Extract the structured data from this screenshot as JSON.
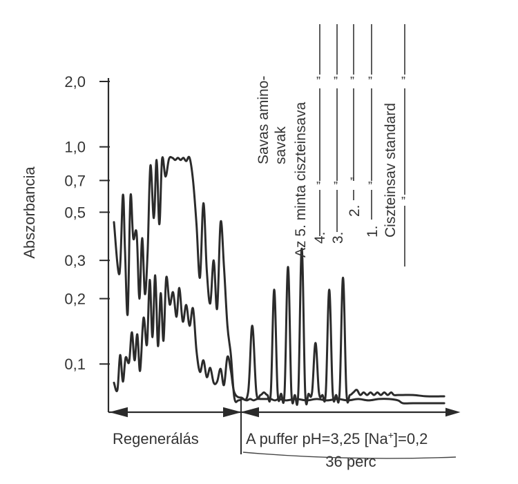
{
  "chart_data": {
    "type": "line",
    "ylabel": "Abszorbancia",
    "yscale": "log",
    "ylim": [
      0.06,
      2.0
    ],
    "y_ticks": [
      {
        "value": 2.0,
        "label": "2,0"
      },
      {
        "value": 1.0,
        "label": "1,0"
      },
      {
        "value": 0.7,
        "label": "0,7"
      },
      {
        "value": 0.5,
        "label": "0,5"
      },
      {
        "value": 0.3,
        "label": "0,3"
      },
      {
        "value": 0.2,
        "label": "0,2"
      },
      {
        "value": 0.1,
        "label": "0,1"
      }
    ],
    "xlim": [
      0,
      50
    ],
    "x_divider": 18,
    "x_segments": [
      {
        "id": "regen",
        "label": "Regenerálás",
        "from": 0,
        "to": 18
      },
      {
        "id": "buffer",
        "label": "A puffer pH=3,25 [Na",
        "label_sup": "+",
        "label_tail": "]=0,2",
        "sublabel": "36 perc",
        "from": 18,
        "to": 50
      }
    ],
    "series": [
      {
        "name": "upper-trace",
        "x": [
          0.5,
          1.3,
          1.8,
          2.1,
          2.5,
          2.9,
          3.3,
          3.8,
          4.2,
          4.6,
          5.0,
          5.4,
          5.8,
          6.3,
          6.7,
          7.1,
          7.5,
          8.0,
          8.5,
          9.0,
          9.4,
          9.8,
          10.2,
          10.6,
          11.0,
          11.5,
          12.0,
          12.5,
          13.0,
          13.5,
          14.0,
          14.5,
          15.0,
          15.5,
          16.0,
          16.5,
          17.0,
          17.5,
          18.0,
          18.6,
          19.2,
          19.8,
          20.3,
          20.8,
          21.3,
          21.8,
          22.3,
          22.8,
          23.3,
          23.9,
          24.5,
          25.5,
          27.0,
          28.5,
          30.0,
          31.5,
          33.0,
          34.5,
          36.0,
          37.5,
          39.0,
          40.5,
          41.8,
          42.5,
          44.0,
          46.0,
          48.5
        ],
        "y": [
          0.45,
          0.26,
          0.6,
          0.34,
          0.17,
          0.59,
          0.38,
          0.4,
          0.2,
          0.38,
          0.21,
          0.33,
          0.82,
          0.47,
          0.87,
          0.44,
          0.88,
          0.73,
          0.88,
          0.89,
          0.87,
          0.89,
          0.87,
          0.89,
          0.86,
          0.89,
          0.7,
          0.44,
          0.25,
          0.55,
          0.27,
          0.19,
          0.3,
          0.18,
          0.45,
          0.28,
          0.15,
          0.11,
          0.07,
          0.068,
          0.069,
          0.068,
          0.069,
          0.068,
          0.069,
          0.069,
          0.069,
          0.069,
          0.069,
          0.068,
          0.069,
          0.068,
          0.069,
          0.068,
          0.069,
          0.068,
          0.069,
          0.068,
          0.069,
          0.068,
          0.069,
          0.069,
          0.068,
          0.066,
          0.066,
          0.066,
          0.066
        ]
      },
      {
        "name": "lower-trace",
        "x": [
          0.5,
          1.0,
          1.4,
          1.8,
          2.2,
          2.7,
          3.1,
          3.5,
          3.9,
          4.3,
          4.8,
          5.3,
          5.7,
          6.1,
          6.5,
          6.9,
          7.3,
          7.7,
          8.1,
          8.6,
          9.1,
          9.6,
          10.0,
          10.5,
          11.0,
          11.5,
          12.0,
          12.5,
          13.0,
          13.5,
          14.0,
          14.5,
          15.0,
          15.5,
          16.0,
          16.5,
          17.0,
          17.5,
          18.0,
          19.0,
          20.0,
          20.6,
          21.2,
          21.8,
          22.3,
          22.8,
          23.3,
          23.8,
          24.3,
          24.8,
          25.3,
          25.8,
          26.3,
          26.8,
          27.3,
          27.8,
          28.3,
          28.8,
          29.3,
          29.8,
          30.3,
          30.8,
          31.3,
          31.8,
          32.3,
          32.8,
          33.3,
          33.8,
          34.3,
          34.8,
          35.3,
          35.8,
          36.3,
          36.8,
          37.3,
          37.8,
          38.3,
          38.8,
          39.3,
          39.8,
          40.3,
          40.8,
          41.2,
          41.8,
          42.5,
          44.0,
          46.0,
          48.5
        ],
        "y": [
          0.082,
          0.076,
          0.11,
          0.083,
          0.107,
          0.102,
          0.14,
          0.104,
          0.137,
          0.093,
          0.163,
          0.123,
          0.244,
          0.133,
          0.256,
          0.121,
          0.212,
          0.128,
          0.25,
          0.188,
          0.214,
          0.165,
          0.224,
          0.157,
          0.187,
          0.15,
          0.18,
          0.115,
          0.092,
          0.104,
          0.087,
          0.096,
          0.082,
          0.083,
          0.095,
          0.08,
          0.108,
          0.093,
          0.074,
          0.07,
          0.074,
          0.15,
          0.074,
          0.072,
          0.074,
          0.072,
          0.074,
          0.22,
          0.074,
          0.073,
          0.074,
          0.28,
          0.074,
          0.072,
          0.074,
          0.34,
          0.074,
          0.073,
          0.074,
          0.125,
          0.074,
          0.072,
          0.074,
          0.22,
          0.074,
          0.072,
          0.074,
          0.25,
          0.074,
          0.072,
          0.074,
          0.076,
          0.072,
          0.074,
          0.072,
          0.074,
          0.072,
          0.074,
          0.072,
          0.074,
          0.072,
          0.074,
          0.072,
          0.072,
          0.072,
          0.072,
          0.071,
          0.071
        ]
      }
    ],
    "annotations": {
      "savas": {
        "line1": "Savas amino-",
        "line2": "savak"
      },
      "minta": "Az 5. minta ciszteinsava",
      "n4": "4.",
      "n3": "3.",
      "n2": "2.",
      "n1": "1.",
      "standard": "Ciszteinsav standard",
      "ditto": "”"
    }
  }
}
